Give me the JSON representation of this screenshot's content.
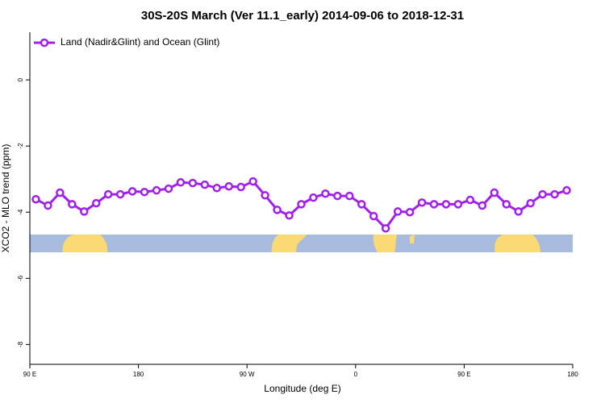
{
  "chart_data": {
    "type": "line",
    "title": "30S-20S March (Ver 11.1_early)   2014-09-06 to 2018-12-31",
    "x_label": "Longitude (deg E)",
    "y_label": "XCO2 - MLO trend (ppm)",
    "x": [
      95,
      105,
      115,
      125,
      135,
      145,
      155,
      165,
      175,
      185,
      195,
      205,
      215,
      225,
      235,
      245,
      255,
      265,
      275,
      285,
      295,
      305,
      315,
      325,
      335,
      345,
      355,
      365,
      375,
      385,
      395,
      405,
      415,
      425,
      435,
      445,
      455,
      465,
      475,
      485,
      495,
      505,
      515,
      525,
      535
    ],
    "series": [
      {
        "name": "Land (Nadir&Glint) and Ocean (Glint)",
        "color": "#a020f0",
        "values": [
          -3.61,
          -3.8,
          -3.41,
          -3.76,
          -3.98,
          -3.73,
          -3.46,
          -3.46,
          -3.37,
          -3.39,
          -3.34,
          -3.29,
          -3.1,
          -3.12,
          -3.17,
          -3.27,
          -3.22,
          -3.24,
          -3.07,
          -3.49,
          -3.93,
          -4.1,
          -3.76,
          -3.56,
          -3.44,
          -3.51,
          -3.51,
          -3.76,
          -4.12,
          -4.49,
          -3.98,
          -4.0,
          -3.71,
          -3.76,
          -3.76,
          -3.76,
          -3.63,
          -3.8,
          -3.41,
          -3.76,
          -3.98,
          -3.73,
          -3.46,
          -3.46,
          -3.34
        ]
      }
    ],
    "xlim": [
      90,
      540
    ],
    "xticks": [
      {
        "value": 90,
        "label": "90 E"
      },
      180,
      {
        "value": 270,
        "label": "90 W"
      },
      {
        "value": 360,
        "label": "0"
      },
      {
        "value": 450,
        "label": "90 E"
      },
      {
        "value": 540,
        "label": "180"
      }
    ],
    "ylim": [
      -8.6,
      1.44
    ],
    "yticks": [
      0,
      -2,
      -4,
      -6,
      -8
    ],
    "legend": "top-left"
  }
}
